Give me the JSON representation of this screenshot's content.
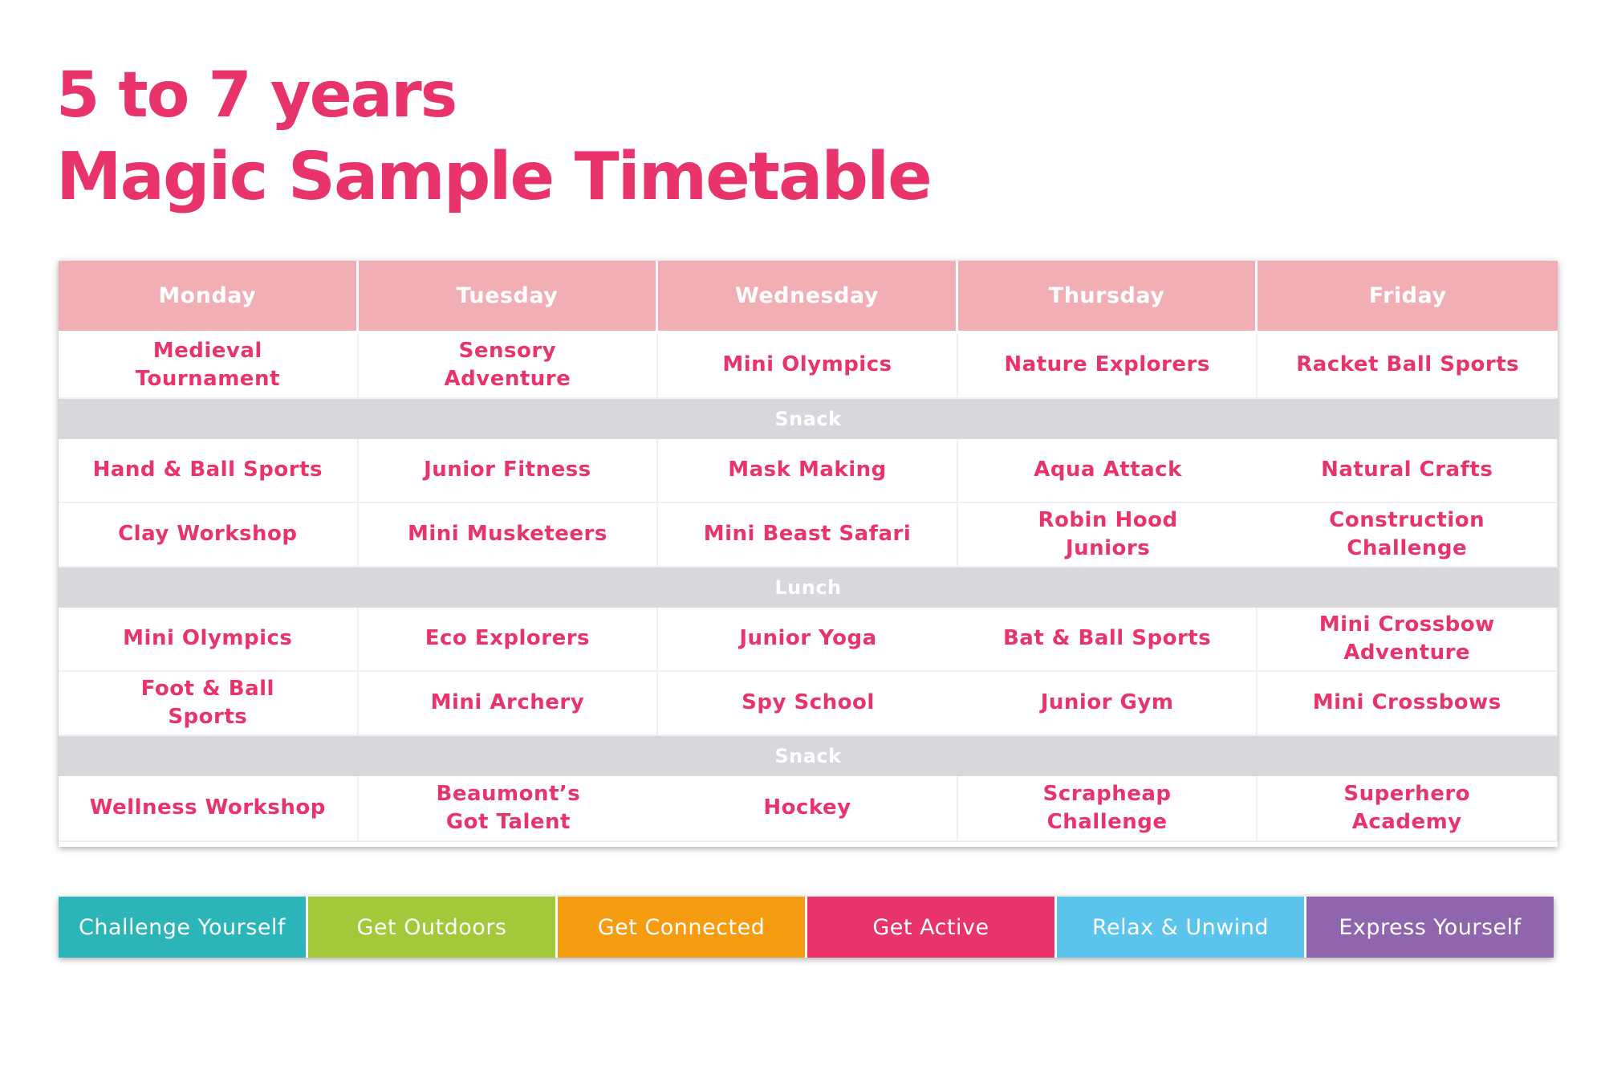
{
  "title": {
    "line1": "5 to 7 years",
    "line2": "Magic Sample Timetable",
    "color": "#e8336b"
  },
  "timetable": {
    "days": [
      "Monday",
      "Tuesday",
      "Wednesday",
      "Thursday",
      "Friday"
    ],
    "rows": [
      {
        "type": "activities",
        "cells": [
          "Medieval\nTournament",
          "Sensory\nAdventure",
          "Mini Olympics",
          "Nature Explorers",
          "Racket Ball Sports"
        ]
      },
      {
        "type": "break",
        "label": "Snack"
      },
      {
        "type": "activities",
        "cells": [
          "Hand & Ball Sports",
          "Junior Fitness",
          "Mask Making",
          "Aqua Attack",
          "Natural Crafts"
        ]
      },
      {
        "type": "activities",
        "cells": [
          "Clay Workshop",
          "Mini Musketeers",
          "Mini Beast Safari",
          "Robin Hood\nJuniors",
          "Construction Challenge"
        ]
      },
      {
        "type": "break",
        "label": "Lunch"
      },
      {
        "type": "activities",
        "cells": [
          "Mini Olympics",
          "Eco Explorers",
          "Junior Yoga",
          "Bat & Ball Sports",
          "Mini Crossbow\nAdventure"
        ]
      },
      {
        "type": "activities",
        "cells": [
          "Foot & Ball\nSports",
          "Mini Archery",
          "Spy School",
          "Junior Gym",
          "Mini Crossbows"
        ]
      },
      {
        "type": "break",
        "label": "Snack"
      },
      {
        "type": "activities",
        "cells": [
          "Wellness Workshop",
          "Beaumont’s\nGot Talent",
          "Hockey",
          "Scrapheap\nChallenge",
          "Superhero\nAcademy"
        ]
      }
    ],
    "colors": {
      "header_bg": "#f2aeb5",
      "break_bg": "#d8d8dc",
      "activity_text": "#e8336b"
    }
  },
  "legend": [
    {
      "label": "Challenge Yourself",
      "color": "#2bb5b8"
    },
    {
      "label": "Get Outdoors",
      "color": "#a3c83a"
    },
    {
      "label": "Get Connected",
      "color": "#f59c10"
    },
    {
      "label": "Get Active",
      "color": "#e8336b"
    },
    {
      "label": "Relax & Unwind",
      "color": "#5bc4ec"
    },
    {
      "label": "Express Yourself",
      "color": "#8f65ad"
    }
  ]
}
